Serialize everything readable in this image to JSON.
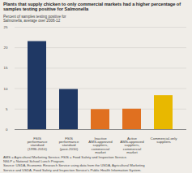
{
  "chart_data": {
    "type": "bar",
    "title": "Plants that supply chicken to only commercial markets had a higher percentage of\nsamples testing positive for Salmonella",
    "ylabel": "Percent of samples testing positive for\nSalmonella, average over 2006-12",
    "categories": [
      "FSIS\nperformance\nstandard\n(1996-2010)",
      "FSIS\nperformance\nstandard\n(post-2010)",
      "Inactive\nAMS-approved\nsuppliers,\ncommercial\nmarket",
      "Active\nAMS-approved\nsuppliers,\ncommercial\nmarket",
      "Commercial-only\nsuppliers"
    ],
    "values": [
      21.5,
      9.8,
      4.9,
      5.0,
      8.3
    ],
    "colors": [
      "#1f3864",
      "#1f3864",
      "#e07020",
      "#e07020",
      "#e8b800"
    ],
    "ylim": [
      0,
      25
    ],
    "yticks": [
      0,
      5,
      10,
      15,
      20,
      25
    ],
    "grid": true,
    "annotations": [
      "AMS = Agricultural Marketing Service; FSIS = Food Safety and Inspection Service.",
      "NSLP = National School Lunch Program.",
      "Source: USDA, Economic Research Service using data from the USDA, Agricultural Marketing",
      "Service and USDA, Food Safety and Inspection Service's Public Health Information System."
    ]
  }
}
